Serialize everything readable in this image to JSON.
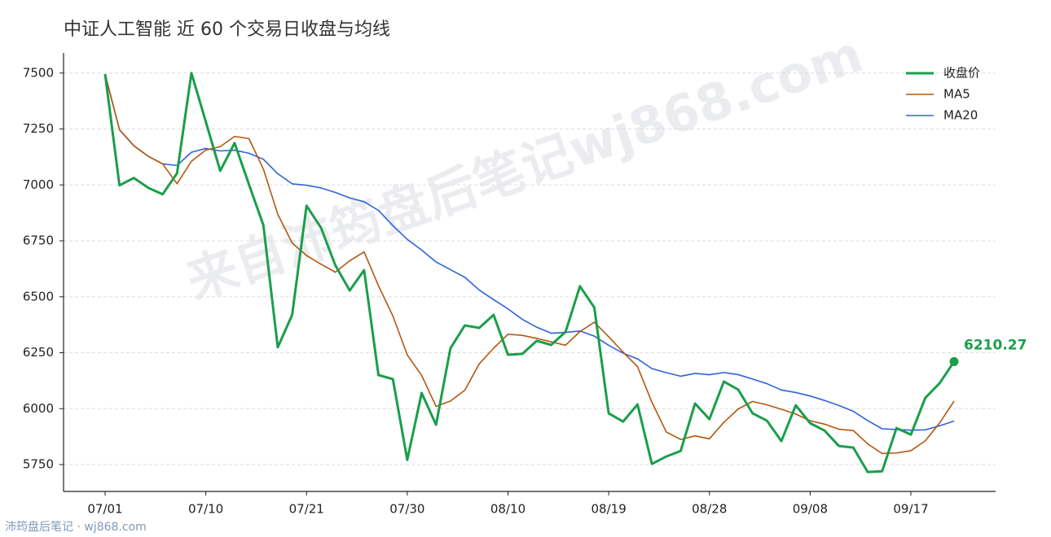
{
  "chart_data": {
    "type": "line",
    "title": "中证人工智能 近 60 个交易日收盘与均线",
    "watermark": "来自沛筠盘后笔记wj868.com",
    "footer": "沛筠盘后笔记 · wj868.com",
    "categories": [
      "07/01",
      null,
      null,
      null,
      null,
      null,
      null,
      "07/10",
      null,
      null,
      null,
      null,
      null,
      null,
      "07/21",
      null,
      null,
      null,
      null,
      null,
      null,
      "07/30",
      null,
      null,
      null,
      null,
      null,
      null,
      "08/10",
      null,
      null,
      null,
      null,
      null,
      null,
      "08/19",
      null,
      null,
      null,
      null,
      null,
      null,
      "08/28",
      null,
      null,
      null,
      null,
      null,
      null,
      "09/08",
      null,
      null,
      null,
      null,
      null,
      null,
      "09/17",
      null,
      null,
      null
    ],
    "series": [
      {
        "name": "收盘价",
        "color": "#1a9e4a",
        "width": 3,
        "values": [
          7495,
          6998,
          7031,
          6987,
          6958,
          7052,
          7500,
          7282,
          7063,
          7187,
          7002,
          6820,
          6274,
          6419,
          6907,
          6809,
          6641,
          6528,
          6619,
          6150,
          6132,
          5771,
          6070,
          5928,
          6270,
          6372,
          6361,
          6419,
          6241,
          6245,
          6303,
          6285,
          6343,
          6547,
          6452,
          5979,
          5942,
          6019,
          5753,
          5786,
          5811,
          6023,
          5953,
          6121,
          6085,
          5979,
          5946,
          5855,
          6015,
          5935,
          5902,
          5833,
          5826,
          5717,
          5720,
          5913,
          5884,
          6048,
          6114,
          6210.27
        ]
      },
      {
        "name": "MA5",
        "color": "#b5560f",
        "width": 1.6,
        "values": [
          7495,
          7246.5,
          7174.7,
          7127.8,
          7093.8,
          7005.2,
          7105.6,
          7155.8,
          7171.0,
          7216.8,
          7206.8,
          7070.8,
          6869.2,
          6740.4,
          6684.4,
          6645.8,
          6610.0,
          6660.8,
          6700.8,
          6549.4,
          6414.0,
          6240.0,
          6148.4,
          6010.2,
          6034.2,
          6082.2,
          6200.2,
          6270.0,
          6332.6,
          6327.6,
          6313.8,
          6298.6,
          6283.4,
          6344.6,
          6386.0,
          6321.2,
          6252.6,
          6187.8,
          6029.0,
          5895.8,
          5862.2,
          5878.4,
          5865.2,
          5938.8,
          5998.6,
          6032.2,
          6016.8,
          5997.2,
          5976.0,
          5946.0,
          5930.6,
          5908.0,
          5902.2,
          5842.6,
          5799.6,
          5801.8,
          5812.0,
          5856.4,
          5935.8,
          6033.9
        ]
      },
      {
        "name": "MA20",
        "color": "#2f63d8",
        "width": 1.6,
        "values": [
          7495,
          7246.5,
          7174.7,
          7127.8,
          7093.8,
          7086.8,
          7145.9,
          7162.9,
          7151.8,
          7155.3,
          7141.4,
          7114.6,
          7049.9,
          7004.9,
          6998.3,
          6986.5,
          6966.2,
          6941.8,
          6924.8,
          6886.1,
          6818.0,
          6756.6,
          6708.6,
          6655.6,
          6621.2,
          6587.2,
          6530.3,
          6487.1,
          6446.0,
          6398.9,
          6364.0,
          6337.2,
          6340.7,
          6347.1,
          6324.3,
          6282.8,
          6247.9,
          6222.4,
          6179.1,
          6160.9,
          6144.9,
          6157.5,
          6151.6,
          6161.3,
          6152.0,
          6132.4,
          6111.6,
          6083.4,
          6072.1,
          6056.6,
          6036.6,
          6014.0,
          5988.1,
          5946.6,
          5910.0,
          5906.7,
          5903.8,
          5905.3,
          5923.3,
          5944.5
        ]
      }
    ],
    "ylim": [
      5630,
      7590
    ],
    "yticks": [
      5750,
      6000,
      6250,
      6500,
      6750,
      7000,
      7250,
      7500
    ],
    "grid": true,
    "legend": "upper right"
  }
}
